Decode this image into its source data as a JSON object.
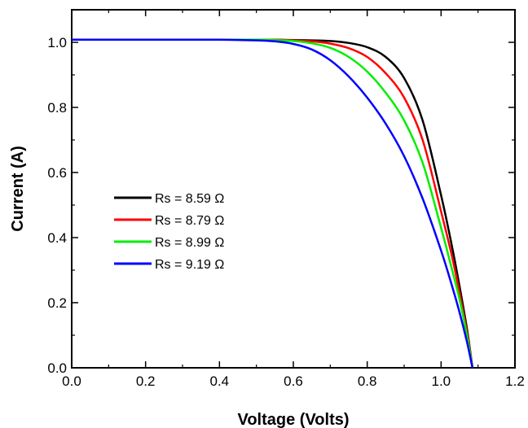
{
  "chart_data": {
    "type": "line",
    "title": "",
    "xlabel": "Voltage (Volts)",
    "ylabel": "Current (A)",
    "xlim": [
      0.0,
      1.2
    ],
    "ylim": [
      0.0,
      1.1
    ],
    "xticks": [
      "0.0",
      "0.2",
      "0.4",
      "0.6",
      "0.8",
      "1.0",
      "1.2"
    ],
    "yticks": [
      "0.0",
      "0.2",
      "0.4",
      "0.6",
      "0.8",
      "1.0"
    ],
    "grid": false,
    "legend_position": "center-left",
    "x": [
      0.0,
      0.1,
      0.2,
      0.3,
      0.4,
      0.5,
      0.55,
      0.6,
      0.65,
      0.7,
      0.75,
      0.8,
      0.85,
      0.9,
      0.95,
      1.0,
      1.03,
      1.05,
      1.07,
      1.085
    ],
    "series": [
      {
        "name": "Rs = 8.59 Ω",
        "color": "#000000",
        "values": [
          1.008,
          1.008,
          1.008,
          1.008,
          1.008,
          1.008,
          1.008,
          1.007,
          1.006,
          1.004,
          0.998,
          0.985,
          0.955,
          0.89,
          0.76,
          0.53,
          0.37,
          0.25,
          0.12,
          0.0
        ]
      },
      {
        "name": "Rs = 8.79 Ω",
        "color": "#ff0000",
        "values": [
          1.008,
          1.008,
          1.008,
          1.008,
          1.008,
          1.008,
          1.008,
          1.006,
          1.003,
          0.996,
          0.982,
          0.955,
          0.905,
          0.83,
          0.7,
          0.48,
          0.34,
          0.23,
          0.11,
          0.0
        ]
      },
      {
        "name": "Rs = 8.99 Ω",
        "color": "#00ee00",
        "values": [
          1.008,
          1.008,
          1.008,
          1.008,
          1.008,
          1.008,
          1.007,
          1.004,
          0.997,
          0.983,
          0.955,
          0.91,
          0.845,
          0.76,
          0.63,
          0.43,
          0.3,
          0.21,
          0.1,
          0.0
        ]
      },
      {
        "name": "Rs = 9.19  Ω",
        "color": "#0000ff",
        "values": [
          1.008,
          1.008,
          1.008,
          1.008,
          1.008,
          1.006,
          1.003,
          0.995,
          0.978,
          0.945,
          0.895,
          0.83,
          0.75,
          0.65,
          0.52,
          0.36,
          0.25,
          0.17,
          0.08,
          0.0
        ]
      }
    ]
  }
}
